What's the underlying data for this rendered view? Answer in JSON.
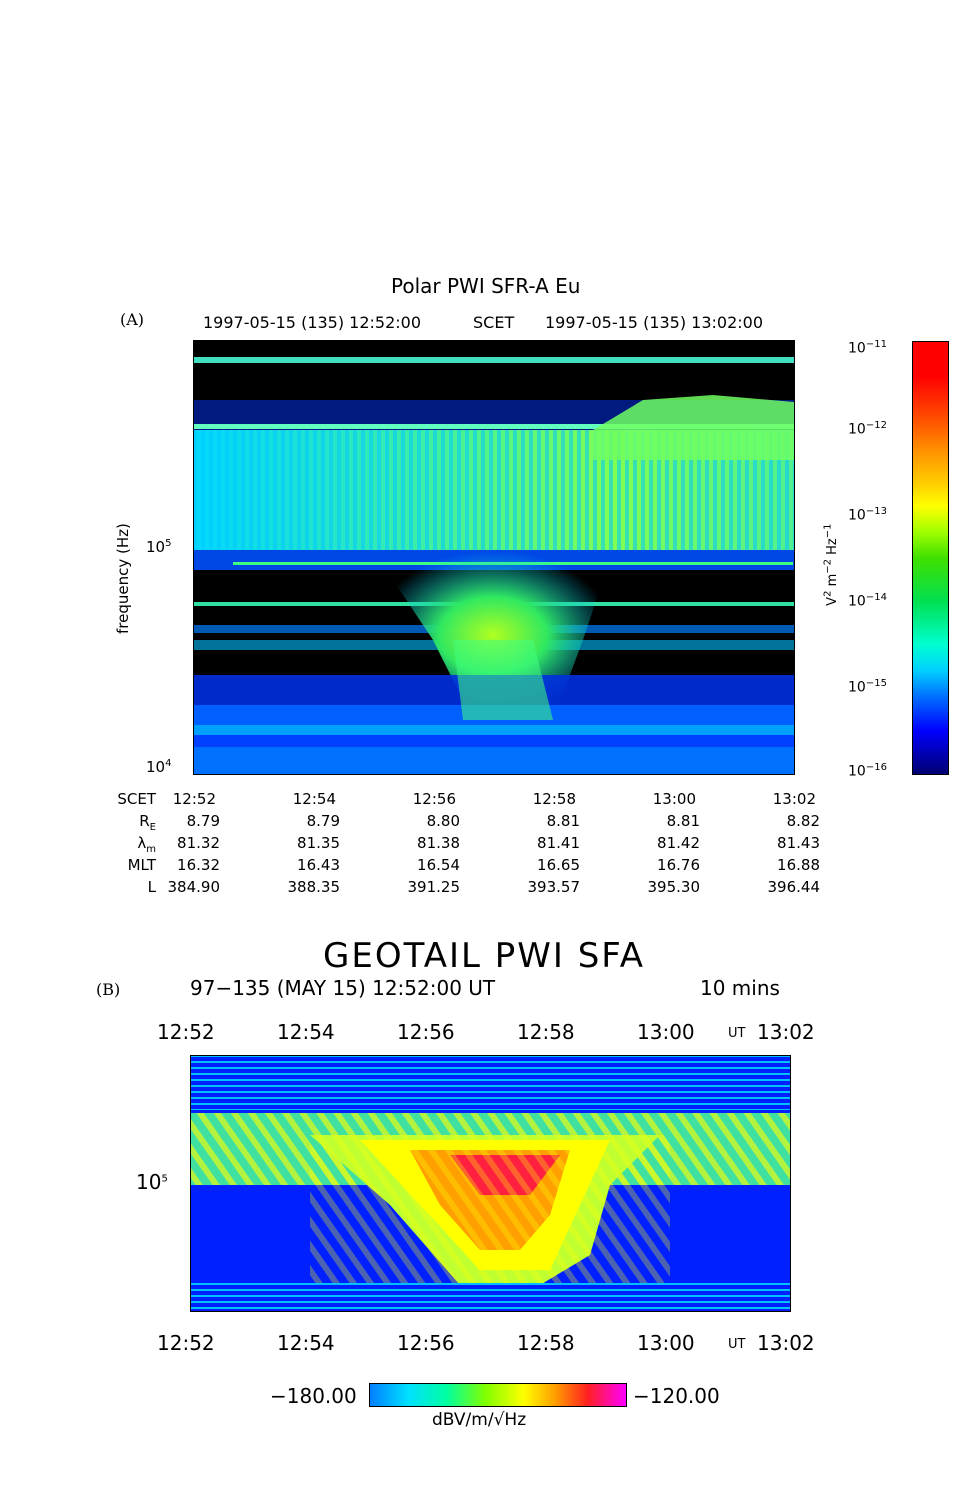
{
  "panel_a": {
    "label": "(A)",
    "title": "Polar PWI SFR-A Eu",
    "start": "1997-05-15 (135) 12:52:00",
    "mid": "SCET",
    "end": "1997-05-15 (135) 13:02:00",
    "ylabel": "frequency (Hz)",
    "y_ticks": [
      {
        "base": "10",
        "exp": "5"
      },
      {
        "base": "10",
        "exp": "4"
      }
    ],
    "colorbar": {
      "label_base": "V",
      "label_rest": "m",
      "label_tail": "Hz",
      "ticks": [
        {
          "base": "10",
          "exp": "−11"
        },
        {
          "base": "10",
          "exp": "−12"
        },
        {
          "base": "10",
          "exp": "−13"
        },
        {
          "base": "10",
          "exp": "−14"
        },
        {
          "base": "10",
          "exp": "−15"
        },
        {
          "base": "10",
          "exp": "−16"
        }
      ]
    },
    "ephemeris": {
      "rows": [
        {
          "label": "SCET",
          "values": [
            "12:52",
            "12:54",
            "12:56",
            "12:58",
            "13:00",
            "13:02"
          ]
        },
        {
          "label": "R",
          "sub": "E",
          "values": [
            "8.79",
            "8.79",
            "8.80",
            "8.81",
            "8.81",
            "8.82"
          ]
        },
        {
          "label": "λ",
          "sub": "m",
          "values": [
            "81.32",
            "81.35",
            "81.38",
            "81.41",
            "81.42",
            "81.43"
          ]
        },
        {
          "label": "MLT",
          "values": [
            "16.32",
            "16.43",
            "16.54",
            "16.65",
            "16.76",
            "16.88"
          ]
        },
        {
          "label": "L",
          "values": [
            "384.90",
            "388.35",
            "391.25",
            "393.57",
            "395.30",
            "396.44"
          ]
        }
      ]
    }
  },
  "panel_b": {
    "label": "(B)",
    "title": "GEOTAIL PWI SFA",
    "subtitle": "97−135 (MAY 15) 12:52:00 UT",
    "duration": "10 mins",
    "time_ticks": [
      "12:52",
      "12:54",
      "12:56",
      "12:58",
      "13:00",
      "13:02"
    ],
    "ut_label": "UT",
    "y_tick": {
      "base": "10",
      "exp": "5"
    },
    "colorbar": {
      "min": "−180.00",
      "max": "−120.00",
      "unit": "dBV/m/√Hz"
    }
  },
  "chart_data": [
    {
      "type": "heatmap",
      "title": "Polar PWI SFR-A Eu",
      "ylabel": "frequency (Hz)",
      "x_range": [
        "12:52",
        "13:02"
      ],
      "y_scale": "log",
      "y_range_hz": [
        10000,
        700000
      ],
      "color_scale": "log",
      "color_range": [
        1e-16,
        1e-11
      ],
      "color_unit": "V² m⁻² Hz⁻¹",
      "colors": [
        "#00007a",
        "#0000ff",
        "#00a0ff",
        "#00ffd0",
        "#00e040",
        "#a0ff00",
        "#ffff00",
        "#ffb000",
        "#ff5000",
        "#ff0000"
      ]
    },
    {
      "type": "heatmap",
      "title": "GEOTAIL PWI SFA",
      "x_range": [
        "12:52",
        "13:02"
      ],
      "y_scale": "log",
      "color_range": [
        -180,
        -120
      ],
      "color_unit": "dBV/m/√Hz",
      "colors": [
        "#00a0ff",
        "#00ffff",
        "#00ff60",
        "#a0ff00",
        "#ffff00",
        "#ffb000",
        "#ff2020",
        "#ff00ff"
      ]
    }
  ]
}
